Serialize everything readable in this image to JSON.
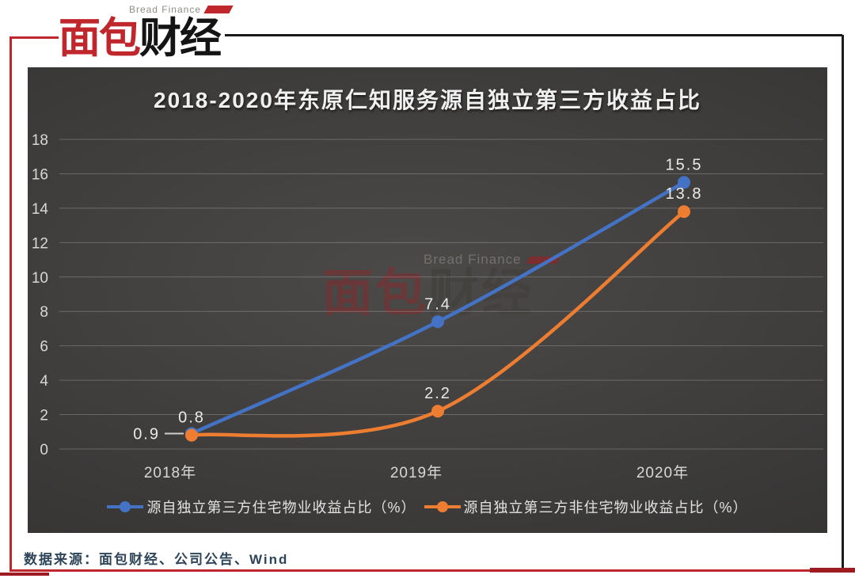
{
  "logo": {
    "subtitle": "Bread Finance",
    "title_red": "面包",
    "title_black": "财经"
  },
  "chart_data": {
    "type": "line",
    "title": "2018-2020年东原仁知服务源自独立第三方收益占比",
    "categories": [
      "2018年",
      "2019年",
      "2020年"
    ],
    "series": [
      {
        "name": "源自独立第三方住宅物业收益占比（%）",
        "color": "#4472C4",
        "values": [
          0.9,
          7.4,
          15.5
        ]
      },
      {
        "name": "源自独立第三方非住宅物业收益占比（%）",
        "color": "#ED7D31",
        "values": [
          0.8,
          2.2,
          13.8
        ]
      }
    ],
    "ylim": [
      0,
      18
    ],
    "ytick_step": 2,
    "grid": true,
    "legend_position": "bottom",
    "data_labels": true,
    "gridline_color": "rgba(255,255,255,0.22)"
  },
  "watermark": {
    "subtitle": "Bread Finance",
    "title_red": "面包",
    "title_gray": "财经"
  },
  "footer": {
    "source": "数据来源：面包财经、公司公告、Wind"
  },
  "colors": {
    "brand_red": "#c0272d",
    "frame_black": "#1b1b1b",
    "footer_text": "#2e4459"
  }
}
